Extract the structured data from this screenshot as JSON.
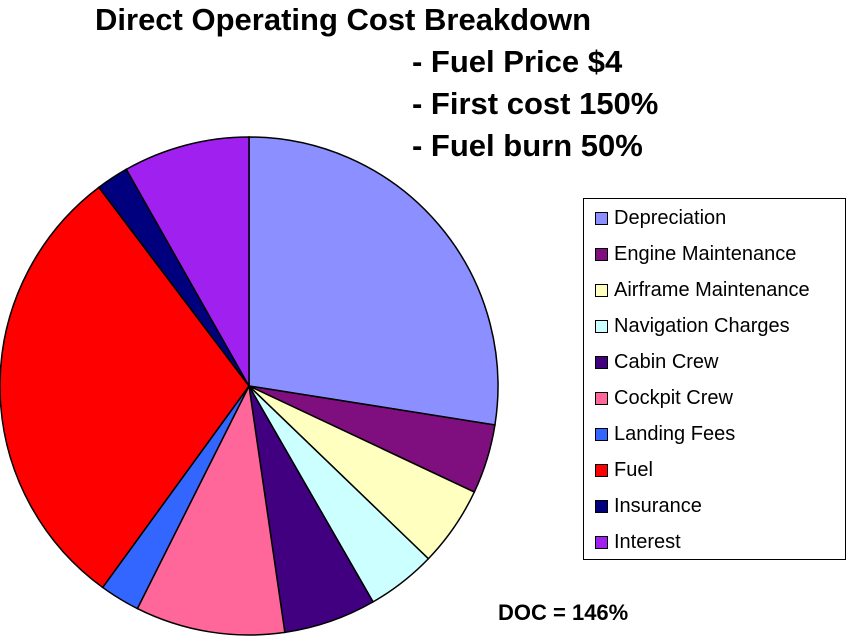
{
  "chart_data": {
    "type": "pie",
    "title_lines": [
      "Direct Operating Cost Breakdown",
      "- Fuel Price $4",
      "- First cost 150%",
      "- Fuel burn 50%"
    ],
    "start_angle_deg": 0,
    "direction": "clockwise",
    "slices": [
      {
        "label": "Depreciation",
        "value": 27.5,
        "color": "#8B8FFF"
      },
      {
        "label": "Engine Maintenance",
        "value": 4.5,
        "color": "#7F0F7F"
      },
      {
        "label": "Airframe Maintenance",
        "value": 5.2,
        "color": "#FFFFC0"
      },
      {
        "label": "Navigation Charges",
        "value": 4.5,
        "color": "#CCFFFF"
      },
      {
        "label": "Cabin Crew",
        "value": 6.0,
        "color": "#40007F"
      },
      {
        "label": "Cockpit Crew",
        "value": 9.7,
        "color": "#FF6699"
      },
      {
        "label": "Landing Fees",
        "value": 2.6,
        "color": "#3366FF"
      },
      {
        "label": "Fuel",
        "value": 29.7,
        "color": "#FF0000"
      },
      {
        "label": "Insurance",
        "value": 2.1,
        "color": "#00007F"
      },
      {
        "label": "Interest",
        "value": 8.2,
        "color": "#A020F0"
      }
    ],
    "legend_position": "right",
    "annotation": "DOC = 146%"
  }
}
